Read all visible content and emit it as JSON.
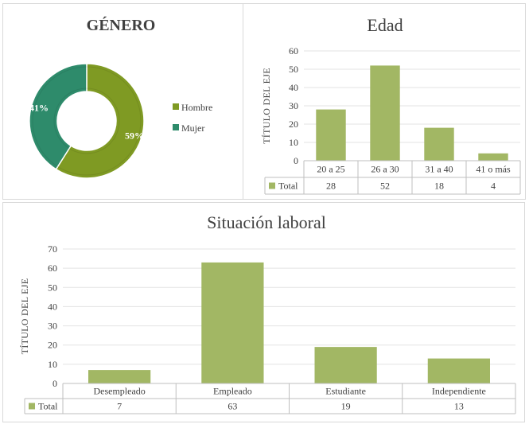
{
  "chart_data": [
    {
      "type": "pie",
      "title": "GÉNERO",
      "categories": [
        "Hombre",
        "Mujer"
      ],
      "values": [
        59,
        41
      ],
      "labels": [
        "59%",
        "41%"
      ],
      "colors": [
        "#7f9a23",
        "#2e8b6b"
      ],
      "legend": "right"
    },
    {
      "type": "bar",
      "title": "Edad",
      "categories": [
        "20 a 25",
        "26 a 30",
        "31 a 40",
        "41 o más"
      ],
      "series": [
        {
          "name": "Total",
          "values": [
            28,
            52,
            18,
            4
          ]
        }
      ],
      "ylabel": "TÍTULO DEL EJE",
      "ylim": [
        0,
        60
      ],
      "yticks": [
        0,
        10,
        20,
        30,
        40,
        50,
        60
      ],
      "color": "#a2b764",
      "data_table": true
    },
    {
      "type": "bar",
      "title": "Situación laboral",
      "categories": [
        "Desempleado",
        "Empleado",
        "Estudiante",
        "Independiente"
      ],
      "series": [
        {
          "name": "Total",
          "values": [
            7,
            63,
            19,
            13
          ]
        }
      ],
      "ylabel": "TÍTULO DEL EJE",
      "ylim": [
        0,
        70
      ],
      "yticks": [
        0,
        10,
        20,
        30,
        40,
        50,
        60,
        70
      ],
      "color": "#a2b764",
      "data_table": true
    }
  ]
}
